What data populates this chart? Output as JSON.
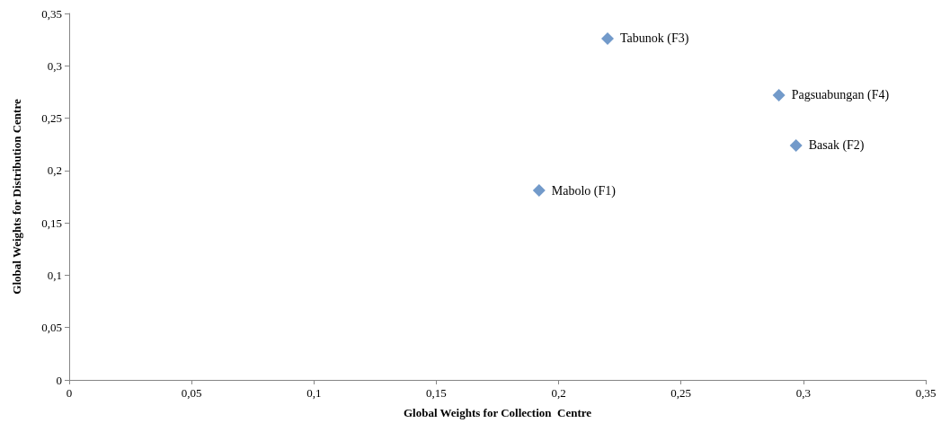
{
  "chart_data": {
    "type": "scatter",
    "xlabel": "Global Weights for Collection  Centre",
    "ylabel": "Global Weights for Distribution Centre",
    "x": [
      0.22,
      0.29,
      0.297,
      0.192
    ],
    "values": [
      0.326,
      0.272,
      0.224,
      0.181
    ],
    "color": "#4f81bd",
    "marker": "diamond",
    "grid": false,
    "xlim": [
      0,
      0.35
    ],
    "ylim": [
      0,
      0.35
    ],
    "xticks": [
      0,
      {
        "value": 0.05,
        "label": "0,05"
      },
      {
        "value": 0.1,
        "label": "0,1"
      },
      {
        "value": 0.15,
        "label": "0,15"
      },
      {
        "value": 0.2,
        "label": "0,2"
      },
      {
        "value": 0.25,
        "label": "0,25"
      },
      {
        "value": 0.3,
        "label": "0,3"
      },
      {
        "value": 0.35,
        "label": "0,35"
      }
    ],
    "yticks": [
      0,
      {
        "value": 0.05,
        "label": "0,05"
      },
      {
        "value": 0.1,
        "label": "0,1"
      },
      {
        "value": 0.15,
        "label": "0,15"
      },
      {
        "value": 0.2,
        "label": "0,2"
      },
      {
        "value": 0.25,
        "label": "0,25"
      },
      {
        "value": 0.3,
        "label": "0,3"
      },
      {
        "value": 0.35,
        "label": "0,35"
      }
    ],
    "annotations": [
      {
        "text": "Tabunok (F3)",
        "x": 0.22,
        "y": 0.326
      },
      {
        "text": "Pagsuabungan (F4)",
        "x": 0.29,
        "y": 0.272
      },
      {
        "text": "Basak (F2)",
        "x": 0.297,
        "y": 0.224
      },
      {
        "text": "Mabolo (F1)",
        "x": 0.192,
        "y": 0.181
      }
    ]
  }
}
